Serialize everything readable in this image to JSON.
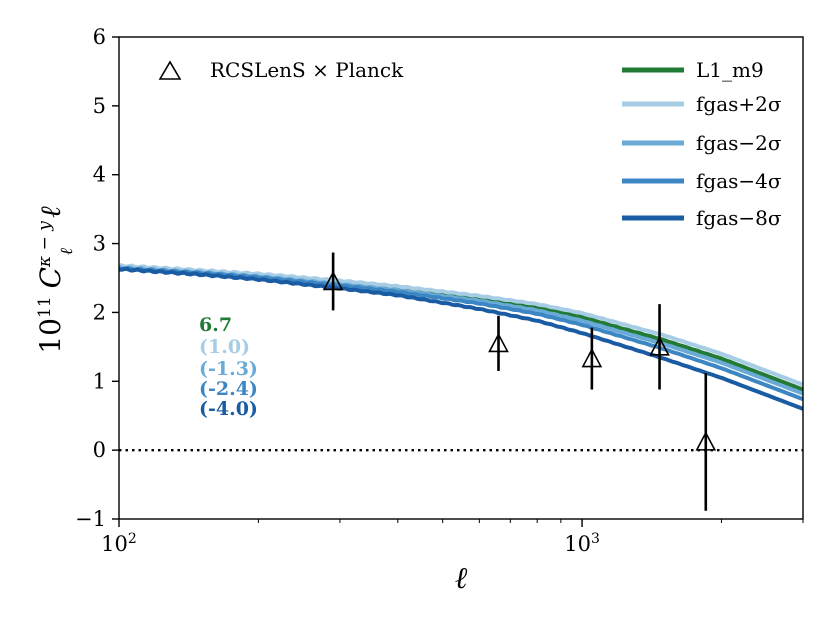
{
  "chart_data": {
    "type": "line",
    "x_scale": "log",
    "xlim": [
      100,
      3000
    ],
    "ylim": [
      -1,
      6
    ],
    "y_ticks": [
      -1,
      0,
      1,
      2,
      3,
      4,
      5,
      6
    ],
    "y_tick_labels": [
      "−1",
      "0",
      "1",
      "2",
      "3",
      "4",
      "5",
      "6"
    ],
    "x_ticks": [
      100,
      1000
    ],
    "x_tick_labels": [
      {
        "base": "10",
        "exp": "2"
      },
      {
        "base": "10",
        "exp": "3"
      }
    ],
    "xlabel": "ℓ",
    "ylabel": {
      "prefix": "10",
      "prefix_exp": "11",
      "symbol": "C",
      "sup": "κ − y",
      "sub": "ℓ",
      "suffix": "ℓ"
    },
    "zero_line": 0,
    "legend_position": "top-right",
    "series": [
      {
        "name": "L1_m9",
        "label": "L1_m9",
        "color": "#217a36",
        "x": [
          100,
          150,
          200,
          300,
          400,
          600,
          800,
          1000,
          1500,
          2000,
          3000
        ],
        "y": [
          2.66,
          2.59,
          2.53,
          2.43,
          2.35,
          2.2,
          2.07,
          1.93,
          1.6,
          1.33,
          0.88
        ]
      },
      {
        "name": "fgas+2sigma",
        "label": "fgas+2σ",
        "color": "#a7cde6",
        "x": [
          100,
          150,
          200,
          300,
          400,
          600,
          800,
          1000,
          1500,
          2000,
          3000
        ],
        "y": [
          2.68,
          2.61,
          2.56,
          2.46,
          2.38,
          2.24,
          2.12,
          1.99,
          1.67,
          1.4,
          0.95
        ]
      },
      {
        "name": "fgas-2sigma",
        "label": "fgas−2σ",
        "color": "#6aaad6",
        "x": [
          100,
          150,
          200,
          300,
          400,
          600,
          800,
          1000,
          1500,
          2000,
          3000
        ],
        "y": [
          2.65,
          2.58,
          2.52,
          2.41,
          2.32,
          2.17,
          2.03,
          1.88,
          1.54,
          1.27,
          0.82
        ]
      },
      {
        "name": "fgas-4sigma",
        "label": "fgas−4σ",
        "color": "#3c86c4",
        "x": [
          100,
          150,
          200,
          300,
          400,
          600,
          800,
          1000,
          1500,
          2000,
          3000
        ],
        "y": [
          2.64,
          2.57,
          2.51,
          2.39,
          2.3,
          2.13,
          1.98,
          1.82,
          1.47,
          1.19,
          0.74
        ]
      },
      {
        "name": "fgas-8sigma",
        "label": "fgas−8σ",
        "color": "#1a5ca3",
        "x": [
          100,
          150,
          200,
          300,
          400,
          600,
          800,
          1000,
          1500,
          2000,
          3000
        ],
        "y": [
          2.63,
          2.55,
          2.48,
          2.35,
          2.25,
          2.05,
          1.88,
          1.7,
          1.33,
          1.05,
          0.6
        ]
      }
    ],
    "data_points": {
      "label": "RCSLenS × Planck",
      "x": [
        290,
        660,
        1050,
        1470,
        1850
      ],
      "y": [
        2.45,
        1.55,
        1.33,
        1.5,
        0.12
      ],
      "yerr": [
        0.42,
        0.4,
        0.45,
        0.62,
        1.0
      ]
    },
    "annotations": [
      {
        "text": "6.7",
        "color": "#217a36"
      },
      {
        "text": "(1.0)",
        "color": "#a7cde6"
      },
      {
        "text": "(-1.3)",
        "color": "#6aaad6"
      },
      {
        "text": "(-2.4)",
        "color": "#3c86c4"
      },
      {
        "text": "(-4.0)",
        "color": "#1a5ca3"
      }
    ]
  }
}
